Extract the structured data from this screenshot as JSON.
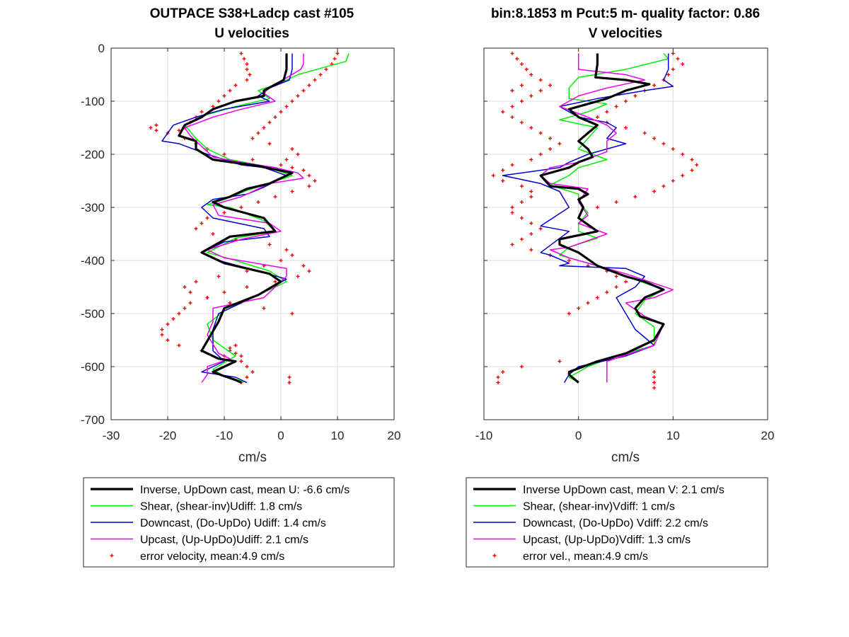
{
  "chart_data": [
    {
      "type": "line",
      "title": "OUTPACE S38+Ladcp cast #105",
      "subtitle": "U velocities",
      "xlabel": "cm/s",
      "ylabel": "",
      "xlim": [
        -30,
        20
      ],
      "ylim": [
        -700,
        0
      ],
      "xticks": [
        "-30",
        "-20",
        "-10",
        "0",
        "10",
        "20"
      ],
      "yticks": [
        "0",
        "-100",
        "-200",
        "-300",
        "-400",
        "-500",
        "-600",
        "-700"
      ],
      "grid": true,
      "legend_position": "below",
      "series": [
        {
          "name": "Inverse, UpDown cast, mean U:  -6.6 cm/s",
          "color": "#000000",
          "width": 3.2,
          "style": "line",
          "x": [
            1,
            1,
            0.5,
            -3,
            -3,
            -8,
            -12,
            -14,
            -17,
            -18,
            -15,
            -15,
            -12,
            -4,
            2,
            -2,
            -6,
            -9,
            -12,
            -10,
            -3,
            -1,
            -9,
            -14,
            -10,
            -2,
            0,
            -4,
            -10,
            -11,
            -14,
            -11,
            -8,
            -12,
            -10,
            -8,
            -7
          ],
          "y": [
            -10,
            -40,
            -60,
            -80,
            -90,
            -100,
            -115,
            -130,
            -145,
            -165,
            -175,
            -190,
            -210,
            -222,
            -235,
            -255,
            -265,
            -280,
            -290,
            -300,
            -320,
            -345,
            -355,
            -385,
            -405,
            -425,
            -440,
            -465,
            -490,
            -515,
            -570,
            -585,
            -590,
            -610,
            -618,
            -625,
            -630
          ]
        },
        {
          "name": "Shear, (shear-inv)Udiff:  1.8 cm/s",
          "color": "#00ee00",
          "width": 1.5,
          "style": "line",
          "x": [
            12,
            11.5,
            8,
            3,
            0,
            -4,
            -2,
            -8,
            -13,
            -17,
            -15,
            -13,
            -9,
            -3,
            2,
            -3,
            -6,
            -10,
            -13,
            -9,
            -3,
            -1,
            -8,
            -13,
            -8,
            -2,
            1,
            -5,
            -10,
            -13,
            -12,
            -8,
            -12,
            -10,
            -6
          ],
          "y": [
            -10,
            -25,
            -35,
            -50,
            -65,
            -80,
            -95,
            -110,
            -125,
            -145,
            -170,
            -190,
            -210,
            -222,
            -240,
            -258,
            -268,
            -285,
            -295,
            -300,
            -325,
            -345,
            -358,
            -385,
            -400,
            -420,
            -440,
            -470,
            -495,
            -520,
            -550,
            -580,
            -605,
            -618,
            -630
          ]
        },
        {
          "name": "Downcast, (Do-UpDo) Udiff:  1.4 cm/s",
          "color": "#0000cc",
          "width": 1.5,
          "style": "line",
          "x": [
            2,
            2,
            1.5,
            -2,
            -4,
            -2,
            -10,
            -15,
            -19,
            -21,
            -18,
            -13,
            -7,
            -3,
            1,
            -3,
            -6,
            -12,
            -14,
            -12,
            -3,
            -2,
            -10,
            -14,
            -11,
            -4,
            1,
            -4,
            -11,
            -12,
            -12,
            -10,
            -14,
            -8,
            -6
          ],
          "y": [
            -10,
            -40,
            -60,
            -75,
            -90,
            -100,
            -115,
            -130,
            -145,
            -175,
            -180,
            -200,
            -220,
            -225,
            -240,
            -262,
            -275,
            -285,
            -300,
            -320,
            -340,
            -355,
            -365,
            -385,
            -400,
            -420,
            -435,
            -465,
            -500,
            -530,
            -570,
            -590,
            -610,
            -620,
            -630
          ]
        },
        {
          "name": "Upcast, (Up-UpDo)Udiff:  2.1 cm/s",
          "color": "#ee00ee",
          "width": 1.5,
          "style": "line",
          "x": [
            4,
            4,
            3.5,
            -2,
            -3,
            -1,
            -7,
            -12,
            -17,
            -16,
            -14,
            -12,
            -7,
            -1,
            3,
            4,
            -2,
            -7,
            -12,
            -11,
            -2,
            0,
            -7,
            -13,
            -10,
            1,
            1,
            -3,
            -12,
            -12,
            -13,
            -11,
            -9,
            -13,
            -13,
            -14
          ],
          "y": [
            -10,
            -30,
            -40,
            -75,
            -85,
            -100,
            -115,
            -130,
            -150,
            -165,
            -185,
            -205,
            -215,
            -225,
            -235,
            -245,
            -255,
            -280,
            -295,
            -315,
            -330,
            -345,
            -360,
            -380,
            -395,
            -415,
            -430,
            -470,
            -490,
            -515,
            -540,
            -575,
            -585,
            -600,
            -615,
            -630
          ]
        },
        {
          "name": "error velocity, mean:4.9 cm/s",
          "color": "#ee0000",
          "width": 1,
          "style": "markers",
          "x": [
            -7,
            -6.5,
            -6,
            -6,
            -5.5,
            -6,
            -8,
            -9,
            -10,
            -11,
            -12,
            -14,
            -15,
            -16,
            -17,
            -18,
            -20,
            -22,
            -23,
            -22,
            -17,
            -15,
            -13,
            -10,
            -5,
            0,
            2,
            4,
            5,
            6,
            5,
            2,
            -1,
            -4,
            -7,
            -10,
            -13,
            -14,
            -15,
            -12,
            -8,
            -2,
            1,
            2,
            0,
            -3,
            -6,
            -11,
            -15,
            -17,
            -16,
            -13,
            -9,
            -3,
            2,
            4,
            5,
            3,
            -1,
            -6,
            -10,
            -13,
            -16,
            -17,
            -18,
            -19,
            -20,
            -21,
            -21,
            -20,
            -18,
            -14,
            -10,
            -7,
            -6,
            -5,
            -6,
            -7,
            -8,
            -9,
            -9,
            -8,
            -7,
            10,
            9.5,
            9,
            8,
            7,
            6,
            5,
            4,
            3,
            2,
            1,
            0,
            -1,
            -2,
            -3,
            -4,
            -5,
            -2,
            2,
            3,
            1,
            1.5,
            1.5
          ],
          "y": [
            -10,
            -20,
            -30,
            -40,
            -50,
            -60,
            -70,
            -80,
            -90,
            -100,
            -110,
            -120,
            -130,
            -140,
            -150,
            -155,
            -160,
            -155,
            -150,
            -145,
            -170,
            -180,
            -190,
            -200,
            -210,
            -220,
            -225,
            -230,
            -240,
            -250,
            -260,
            -270,
            -280,
            -290,
            -300,
            -310,
            -320,
            -330,
            -340,
            -350,
            -360,
            -370,
            -380,
            -390,
            -400,
            -410,
            -420,
            -430,
            -440,
            -450,
            -460,
            -470,
            -480,
            -490,
            -500,
            -410,
            -420,
            -430,
            -440,
            -450,
            -460,
            -470,
            -480,
            -490,
            -500,
            -510,
            -520,
            -530,
            -540,
            -550,
            -560,
            -570,
            -580,
            -590,
            -600,
            -610,
            -620,
            -630,
            -560,
            -565,
            -570,
            -575,
            -580,
            -10,
            -20,
            -30,
            -40,
            -50,
            -60,
            -70,
            -80,
            -90,
            -100,
            -110,
            -120,
            -130,
            -140,
            -150,
            -160,
            -170,
            -180,
            -190,
            -200,
            -210,
            -620,
            -630
          ]
        }
      ]
    },
    {
      "type": "line",
      "title": "bin:8.1853 m  Pcut:5 m- quality factor:  0.86",
      "subtitle": "V velocities",
      "xlabel": "cm/s",
      "ylabel": "",
      "xlim": [
        -10,
        20
      ],
      "ylim": [
        -700,
        0
      ],
      "xticks": [
        "-10",
        "0",
        "10",
        "20"
      ],
      "yticks": [],
      "grid": true,
      "legend_position": "below",
      "series": [
        {
          "name": "Inverse UpDown cast, mean V:  2.1 cm/s",
          "color": "#000000",
          "width": 3.2,
          "style": "line",
          "x": [
            2,
            2,
            1.8,
            5,
            7.5,
            5,
            3,
            1,
            -1,
            0,
            2,
            1,
            0,
            1,
            1.5,
            0,
            -1,
            -4,
            -3,
            0,
            1,
            0,
            0.5,
            0,
            2,
            -2,
            -2,
            0,
            2,
            5,
            7,
            9,
            7,
            6,
            6.5,
            9,
            8,
            5,
            2,
            -1,
            -1,
            0
          ],
          "y": [
            -10,
            -30,
            -55,
            -60,
            -68,
            -80,
            -95,
            -105,
            -115,
            -130,
            -145,
            -160,
            -175,
            -190,
            -205,
            -215,
            -225,
            -240,
            -260,
            -265,
            -275,
            -285,
            -300,
            -320,
            -345,
            -360,
            -370,
            -385,
            -410,
            -430,
            -440,
            -455,
            -470,
            -490,
            -505,
            -520,
            -550,
            -575,
            -590,
            -610,
            -615,
            -630
          ]
        },
        {
          "name": "Shear, (shear-inv)Vdiff:  1 cm/s",
          "color": "#00ee00",
          "width": 1.5,
          "style": "line",
          "x": [
            9,
            9.5,
            5,
            0,
            -1,
            -1,
            3,
            1,
            -2,
            2,
            1,
            0,
            3,
            0,
            -1,
            -3,
            0,
            0,
            1,
            0,
            0,
            2,
            -1,
            -2,
            2,
            5,
            9,
            7,
            6,
            8,
            8,
            4,
            1,
            -1,
            0
          ],
          "y": [
            -10,
            -20,
            -40,
            -55,
            -75,
            -95,
            -105,
            -120,
            -135,
            -150,
            -170,
            -190,
            -210,
            -225,
            -240,
            -258,
            -275,
            -290,
            -310,
            -330,
            -345,
            -358,
            -375,
            -390,
            -410,
            -430,
            -455,
            -475,
            -500,
            -525,
            -560,
            -580,
            -600,
            -620,
            -630
          ]
        },
        {
          "name": "Downcast, (Do-UpDo) Vdiff:  2.2 cm/s",
          "color": "#0000cc",
          "width": 1.5,
          "style": "line",
          "x": [
            9.5,
            9.5,
            9,
            10,
            7,
            2,
            -2,
            0,
            3,
            4,
            3,
            5,
            1,
            -1,
            -2,
            -8,
            -4,
            -2,
            -1,
            -4,
            -1,
            -4,
            -3,
            -1,
            -2,
            5,
            7,
            6,
            4,
            5,
            6,
            8,
            5,
            0,
            -1,
            -1.5
          ],
          "y": [
            -10,
            -40,
            -60,
            -72,
            -80,
            -95,
            -110,
            -130,
            -140,
            -150,
            -170,
            -180,
            -200,
            -215,
            -225,
            -240,
            -255,
            -270,
            -300,
            -335,
            -345,
            -385,
            -390,
            -405,
            -410,
            -415,
            -430,
            -450,
            -470,
            -500,
            -530,
            -560,
            -580,
            -600,
            -615,
            -630
          ]
        },
        {
          "name": "Upcast, (Up-UpDo)Vdiff:  1.3 cm/s",
          "color": "#ee00ee",
          "width": 1.5,
          "style": "line",
          "x": [
            0,
            0,
            5,
            7,
            3,
            0,
            -2,
            1,
            3,
            4,
            3,
            3,
            0,
            -3,
            -4,
            -3,
            1,
            0,
            1,
            0,
            3,
            -1,
            -3,
            -1,
            5,
            10,
            8,
            5,
            7,
            9,
            8,
            3,
            3,
            3
          ],
          "y": [
            -10,
            -40,
            -50,
            -60,
            -75,
            -90,
            -110,
            -130,
            -145,
            -160,
            -175,
            -195,
            -215,
            -225,
            -240,
            -255,
            -265,
            -290,
            -315,
            -330,
            -350,
            -375,
            -380,
            -395,
            -425,
            -455,
            -470,
            -480,
            -505,
            -520,
            -560,
            -590,
            -600,
            -630
          ]
        },
        {
          "name": "error vel., mean:4.9 cm/s",
          "color": "#ee0000",
          "width": 1,
          "style": "markers",
          "x": [
            -7,
            -6.5,
            -6,
            -5.5,
            -5,
            -4,
            -3,
            -4,
            -5,
            -6,
            -7,
            -8,
            -7,
            -6,
            -5,
            -4,
            -3,
            -2,
            -3,
            -4,
            -5,
            -7,
            -8,
            -9,
            -8,
            -6,
            -5,
            -5,
            -6,
            -7,
            -7,
            -6,
            -5,
            -4,
            -5,
            -6,
            -7,
            -5,
            -3,
            -1,
            1,
            3,
            4,
            5,
            4,
            3,
            2,
            1,
            0,
            -1,
            10,
            10.5,
            11,
            10,
            9.5,
            9,
            8,
            7,
            6,
            5,
            4,
            3,
            2,
            3,
            5,
            7,
            8,
            9,
            10,
            11,
            12,
            12.5,
            12,
            11,
            10,
            9,
            8,
            6,
            4,
            2,
            -2,
            -6,
            -8,
            -8.5,
            -8.5,
            -7,
            -6,
            8,
            8,
            8,
            8
          ],
          "y": [
            -10,
            -20,
            -30,
            -40,
            -50,
            -60,
            -70,
            -80,
            -90,
            -100,
            -110,
            -120,
            -130,
            -140,
            -150,
            -160,
            -170,
            -180,
            -190,
            -200,
            -210,
            -220,
            -230,
            -240,
            -250,
            -260,
            -270,
            -280,
            -290,
            -300,
            -310,
            -320,
            -330,
            -340,
            -350,
            -360,
            -370,
            -380,
            -390,
            -400,
            -410,
            -420,
            -430,
            -440,
            -450,
            -460,
            -470,
            -480,
            -490,
            -500,
            -10,
            -20,
            -30,
            -40,
            -50,
            -60,
            -70,
            -80,
            -90,
            -100,
            -110,
            -120,
            -130,
            -140,
            -150,
            -160,
            -170,
            -180,
            -190,
            -200,
            -210,
            -220,
            -230,
            -240,
            -250,
            -260,
            -270,
            -280,
            -290,
            -300,
            -590,
            -600,
            -610,
            -620,
            -630,
            -80,
            -70,
            -610,
            -620,
            -630,
            -640
          ]
        }
      ]
    }
  ]
}
